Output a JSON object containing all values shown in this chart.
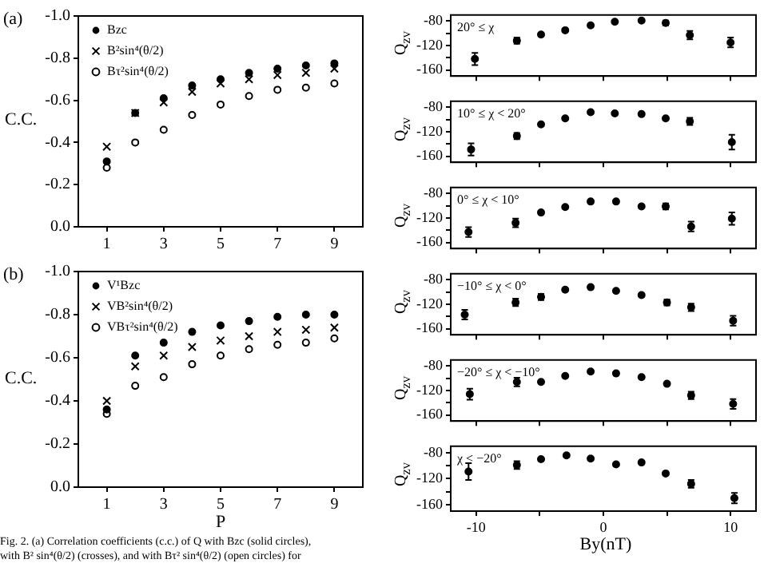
{
  "chart_data": [
    {
      "type": "scatter",
      "title": "(a)",
      "ylabel": "C.C.",
      "x": [
        1,
        2,
        3,
        4,
        5,
        6,
        7,
        8,
        9
      ],
      "xlim": [
        0,
        10
      ],
      "xticks": [
        1,
        3,
        5,
        7,
        9
      ],
      "ylim": [
        0.0,
        -1.0
      ],
      "yticks": [
        {
          "value": 0,
          "label": "0.0"
        },
        {
          "value": -0.2,
          "label": "-0.2"
        },
        {
          "value": -0.4,
          "label": "-0.4"
        },
        {
          "value": -0.6,
          "label": "-0.6"
        },
        {
          "value": -0.8,
          "label": "-0.8"
        },
        {
          "value": -1.0,
          "label": "-1.0"
        }
      ],
      "legend": "top left",
      "series": [
        {
          "name": "Bzc",
          "color": "#000000",
          "marker": "circle",
          "values": [
            -0.31,
            -0.54,
            -0.61,
            -0.67,
            -0.7,
            -0.73,
            -0.75,
            -0.765,
            -0.775
          ]
        },
        {
          "name": "B²sin⁴(θ/2)",
          "color": "#000000",
          "marker": "cross",
          "values": [
            -0.38,
            -0.54,
            -0.59,
            -0.64,
            -0.68,
            -0.7,
            -0.72,
            -0.73,
            -0.75
          ]
        },
        {
          "name": "Bτ²sin⁴(θ/2)",
          "color": "#000000",
          "marker": "open circle",
          "values": [
            -0.28,
            -0.4,
            -0.46,
            -0.53,
            -0.58,
            -0.62,
            -0.65,
            -0.66,
            -0.68
          ]
        }
      ]
    },
    {
      "type": "scatter",
      "title": "(b)",
      "ylabel": "C.C.",
      "xlabel": "P",
      "x": [
        1,
        2,
        3,
        4,
        5,
        6,
        7,
        8,
        9
      ],
      "xlim": [
        0,
        10
      ],
      "xticks": [
        1,
        3,
        5,
        7,
        9
      ],
      "ylim": [
        0.0,
        -1.0
      ],
      "yticks": [
        {
          "value": 0,
          "label": "0.0"
        },
        {
          "value": -0.2,
          "label": "-0.2"
        },
        {
          "value": -0.4,
          "label": "-0.4"
        },
        {
          "value": -0.6,
          "label": "-0.6"
        },
        {
          "value": -0.8,
          "label": "-0.8"
        },
        {
          "value": -1.0,
          "label": "-1.0"
        }
      ],
      "legend": "top left",
      "annotations": [
        "Fig. 2.   (a) Correlation coefficients (c.c.) of Q with Bzc (solid circles),",
        "with B² sin⁴(θ/2) (crosses), and with Bτ² sin⁴(θ/2) (open circles) for"
      ],
      "series": [
        {
          "name": "V¹Bzc",
          "color": "#000000",
          "marker": "circle",
          "values": [
            -0.36,
            -0.61,
            -0.67,
            -0.72,
            -0.75,
            -0.77,
            -0.79,
            -0.8,
            -0.8
          ]
        },
        {
          "name": "VB²sin⁴(θ/2)",
          "color": "#000000",
          "marker": "cross",
          "values": [
            -0.4,
            -0.56,
            -0.61,
            -0.65,
            -0.68,
            -0.7,
            -0.72,
            -0.73,
            -0.74
          ]
        },
        {
          "name": "VBτ²sin⁴(θ/2)",
          "color": "#000000",
          "marker": "open circle",
          "values": [
            -0.34,
            -0.47,
            -0.51,
            -0.57,
            -0.61,
            -0.64,
            -0.66,
            -0.67,
            -0.69
          ]
        }
      ]
    },
    {
      "type": "scatter",
      "ylabel": "Q$_{zv}$",
      "annotations": [
        "20° ≤ χ"
      ],
      "x": [
        -10.1,
        -6.8,
        -4.9,
        -3.0,
        -1.0,
        0.9,
        3.0,
        4.9,
        6.8,
        10.0
      ],
      "xlim": [
        -12,
        12
      ],
      "xticks": [
        {
          "value": -10,
          "label": null
        },
        {
          "value": -5,
          "label": null
        },
        {
          "value": 0,
          "label": null
        },
        {
          "value": 5,
          "label": null
        },
        {
          "value": 10,
          "label": null
        }
      ],
      "ylim": [
        -170,
        -70
      ],
      "yticks": [
        -80,
        {
          "value": -100,
          "label": null
        },
        -120,
        {
          "value": -140,
          "label": null
        },
        -160
      ],
      "tick_labels": "y",
      "marker": "circle",
      "series": [
        {
          "color": "#000000",
          "values": [
            -142,
            -112,
            -102,
            -95,
            -87,
            -81,
            -79,
            -83,
            -103,
            -115
          ],
          "errors": [
            10,
            5,
            null,
            null,
            null,
            null,
            null,
            4,
            7,
            8
          ]
        }
      ]
    },
    {
      "type": "scatter",
      "ylabel": "Q$_{zv}$",
      "annotations": [
        "10° ≤ χ < 20°"
      ],
      "x": [
        -10.4,
        -6.8,
        -4.9,
        -3.0,
        -1.0,
        0.9,
        3.0,
        4.9,
        6.8,
        10.1
      ],
      "xlim": [
        -12,
        12
      ],
      "xticks": [
        {
          "value": -10,
          "label": null
        },
        {
          "value": -5,
          "label": null
        },
        {
          "value": 0,
          "label": null
        },
        {
          "value": 5,
          "label": null
        },
        {
          "value": 10,
          "label": null
        }
      ],
      "ylim": [
        -170,
        -70
      ],
      "yticks": [
        -80,
        {
          "value": -100,
          "label": null
        },
        -120,
        {
          "value": -140,
          "label": null
        },
        -160
      ],
      "tick_labels": "y",
      "marker": "circle",
      "series": [
        {
          "color": "#000000",
          "values": [
            -149,
            -127,
            -108,
            -98,
            -88,
            -90,
            -91,
            -98,
            -103,
            -137
          ],
          "errors": [
            10,
            5,
            null,
            null,
            null,
            null,
            null,
            null,
            6,
            12
          ]
        }
      ]
    },
    {
      "type": "scatter",
      "ylabel": "Q$_{zv}$",
      "annotations": [
        "0° ≤ χ < 10°"
      ],
      "x": [
        -10.6,
        -6.9,
        -4.9,
        -3.0,
        -1.0,
        1.0,
        3.0,
        4.9,
        6.9,
        10.1
      ],
      "xlim": [
        -12,
        12
      ],
      "xticks": [
        {
          "value": -10,
          "label": null
        },
        {
          "value": -5,
          "label": null
        },
        {
          "value": 0,
          "label": null
        },
        {
          "value": 5,
          "label": null
        },
        {
          "value": 10,
          "label": null
        }
      ],
      "ylim": [
        -170,
        -70
      ],
      "yticks": [
        -80,
        {
          "value": -100,
          "label": null
        },
        -120,
        {
          "value": -140,
          "label": null
        },
        -160
      ],
      "tick_labels": "y",
      "marker": "circle",
      "series": [
        {
          "color": "#000000",
          "values": [
            -143,
            -128,
            -111,
            -102,
            -93,
            -93,
            -101,
            -101,
            -134,
            -121
          ],
          "errors": [
            8,
            7,
            null,
            null,
            null,
            null,
            null,
            5,
            8,
            10
          ]
        }
      ]
    },
    {
      "type": "scatter",
      "ylabel": "Q$_{zv}$",
      "annotations": [
        "−10° ≤ χ < 0°"
      ],
      "x": [
        -10.9,
        -6.9,
        -4.9,
        -3.0,
        -1.0,
        1.0,
        3.0,
        5.0,
        6.9,
        10.2
      ],
      "xlim": [
        -12,
        12
      ],
      "xticks": [
        {
          "value": -10,
          "label": null
        },
        {
          "value": -5,
          "label": null
        },
        {
          "value": 0,
          "label": null
        },
        {
          "value": 5,
          "label": null
        },
        {
          "value": 10,
          "label": null
        }
      ],
      "ylim": [
        -170,
        -70
      ],
      "yticks": [
        -80,
        {
          "value": -100,
          "label": null
        },
        -120,
        {
          "value": -140,
          "label": null
        },
        -160
      ],
      "tick_labels": "y",
      "marker": "circle",
      "series": [
        {
          "color": "#000000",
          "values": [
            -137,
            -117,
            -108,
            -96,
            -92,
            -98,
            -105,
            -117,
            -125,
            -147
          ],
          "errors": [
            8,
            6,
            5,
            null,
            null,
            null,
            null,
            5,
            6,
            8
          ]
        }
      ]
    },
    {
      "type": "scatter",
      "ylabel": "Q$_{zv}$",
      "annotations": [
        "−20° ≤ χ < −10°"
      ],
      "x": [
        -10.5,
        -6.8,
        -4.9,
        -3.0,
        -1.0,
        1.0,
        3.0,
        5.0,
        6.9,
        10.2
      ],
      "xlim": [
        -12,
        12
      ],
      "xticks": [
        {
          "value": -10,
          "label": null
        },
        {
          "value": -5,
          "label": null
        },
        {
          "value": 0,
          "label": null
        },
        {
          "value": 5,
          "label": null
        },
        {
          "value": 10,
          "label": null
        }
      ],
      "ylim": [
        -170,
        -70
      ],
      "yticks": [
        -80,
        {
          "value": -100,
          "label": null
        },
        -120,
        {
          "value": -140,
          "label": null
        },
        -160
      ],
      "tick_labels": "y",
      "marker": "circle",
      "series": [
        {
          "color": "#000000",
          "values": [
            -126,
            -106,
            -106,
            -96,
            -89,
            -92,
            -98,
            -109,
            -128,
            -142
          ],
          "errors": [
            9,
            7,
            null,
            null,
            null,
            null,
            null,
            null,
            6,
            8
          ]
        }
      ]
    },
    {
      "type": "scatter",
      "ylabel": "Q$_{zv}$",
      "xlabel": "By(nT)",
      "annotations": [
        "χ < −20°"
      ],
      "x": [
        -10.6,
        -6.8,
        -4.9,
        -2.9,
        -1.0,
        1.0,
        3.0,
        4.9,
        6.9,
        10.3
      ],
      "xlim": [
        -12,
        12
      ],
      "xticks": [
        -10,
        {
          "value": -5,
          "label": null
        },
        0,
        {
          "value": 5,
          "label": null
        },
        10
      ],
      "ylim": [
        -170,
        -70
      ],
      "yticks": [
        -80,
        {
          "value": -100,
          "label": null
        },
        -120,
        {
          "value": -140,
          "label": null
        },
        -160
      ],
      "marker": "circle",
      "series": [
        {
          "color": "#000000",
          "values": [
            -109,
            -99,
            -90,
            -84,
            -89,
            -98,
            -95,
            -112,
            -128,
            -150
          ],
          "errors": [
            13,
            6,
            null,
            null,
            null,
            null,
            null,
            null,
            6,
            8
          ]
        }
      ]
    }
  ]
}
